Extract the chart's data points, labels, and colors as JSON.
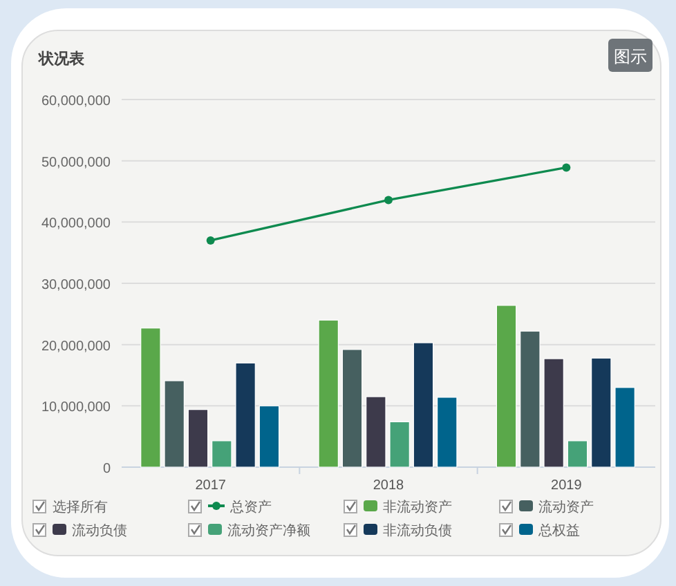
{
  "chart_data": {
    "type": "bar",
    "title": "状况表",
    "categories": [
      "2017",
      "2018",
      "2019"
    ],
    "ylim": [
      0,
      60000000
    ],
    "yticks": [
      0,
      {
        "value": 10000000,
        "label": "10,000,000"
      },
      {
        "value": 20000000,
        "label": "20,000,000"
      },
      {
        "value": 30000000,
        "label": "30,000,000"
      },
      {
        "value": 40000000,
        "label": "40,000,000"
      },
      {
        "value": 50000000,
        "label": "50,000,000"
      },
      {
        "value": 60000000,
        "label": "60,000,000"
      }
    ],
    "grid": "y",
    "legend": "bottom",
    "marker": "circle",
    "annotations": [
      "图示",
      "选择所有"
    ],
    "series": [
      {
        "name": "总资产",
        "type": "line",
        "color": "#0e8a4f",
        "values": [
          37000000,
          43600000,
          48900000
        ]
      },
      {
        "name": "非流动资产",
        "color": "#5aa84a",
        "values": [
          22700000,
          24000000,
          26400000
        ]
      },
      {
        "name": "流动资产",
        "color": "#466060",
        "values": [
          14100000,
          19200000,
          22200000
        ]
      },
      {
        "name": "流动负债",
        "color": "#3d3a4b",
        "values": [
          9400000,
          11500000,
          17700000
        ]
      },
      {
        "name": "流动资产净额",
        "color": "#45a278",
        "values": [
          4300000,
          7400000,
          4300000
        ]
      },
      {
        "name": "非流动负债",
        "color": "#15395a",
        "values": [
          17000000,
          20300000,
          17800000
        ]
      },
      {
        "name": "总权益",
        "color": "#00648c",
        "values": [
          10000000,
          11400000,
          13000000
        ]
      }
    ]
  }
}
